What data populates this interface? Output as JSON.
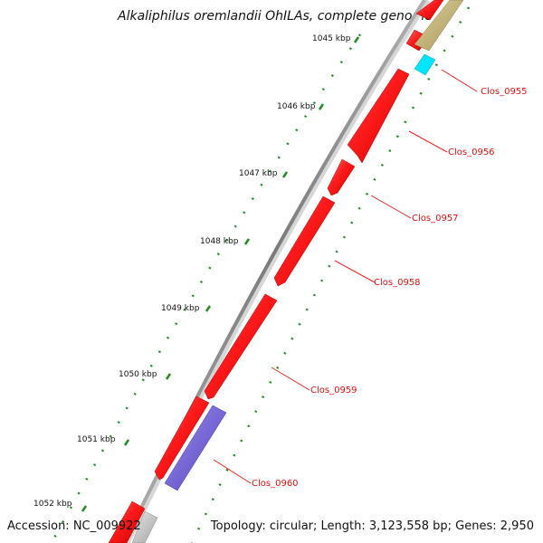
{
  "title": "Alkaliphilus oremlandii OhILAs, complete genome",
  "accession": "Accession: NC_009922",
  "summary": "Topology: circular; Length: 3,123,558 bp; Genes: 2,950",
  "ticks": [
    {
      "label": "1045 kbp"
    },
    {
      "label": "1046 kbp"
    },
    {
      "label": "1047 kbp"
    },
    {
      "label": "1048 kbp"
    },
    {
      "label": "1049 kbp"
    },
    {
      "label": "1050 kbp"
    },
    {
      "label": "1051 kbp"
    },
    {
      "label": "1052 kbp"
    }
  ],
  "gene_labels": [
    {
      "label": "Clos_0955"
    },
    {
      "label": "Clos_0956"
    },
    {
      "label": "Clos_0957"
    },
    {
      "label": "Clos_0958"
    },
    {
      "label": "Clos_0959"
    },
    {
      "label": "Clos_0960"
    }
  ],
  "colors": {
    "gene_red": "#ff0000",
    "gene_blue": "#7766dd",
    "gene_cyan": "#00e5ff",
    "gene_olive": "#c7b56f",
    "gene_gray": "#c8c8c8",
    "backbone": "#808080",
    "tick": "#228b22",
    "callout": "#ee2222"
  }
}
